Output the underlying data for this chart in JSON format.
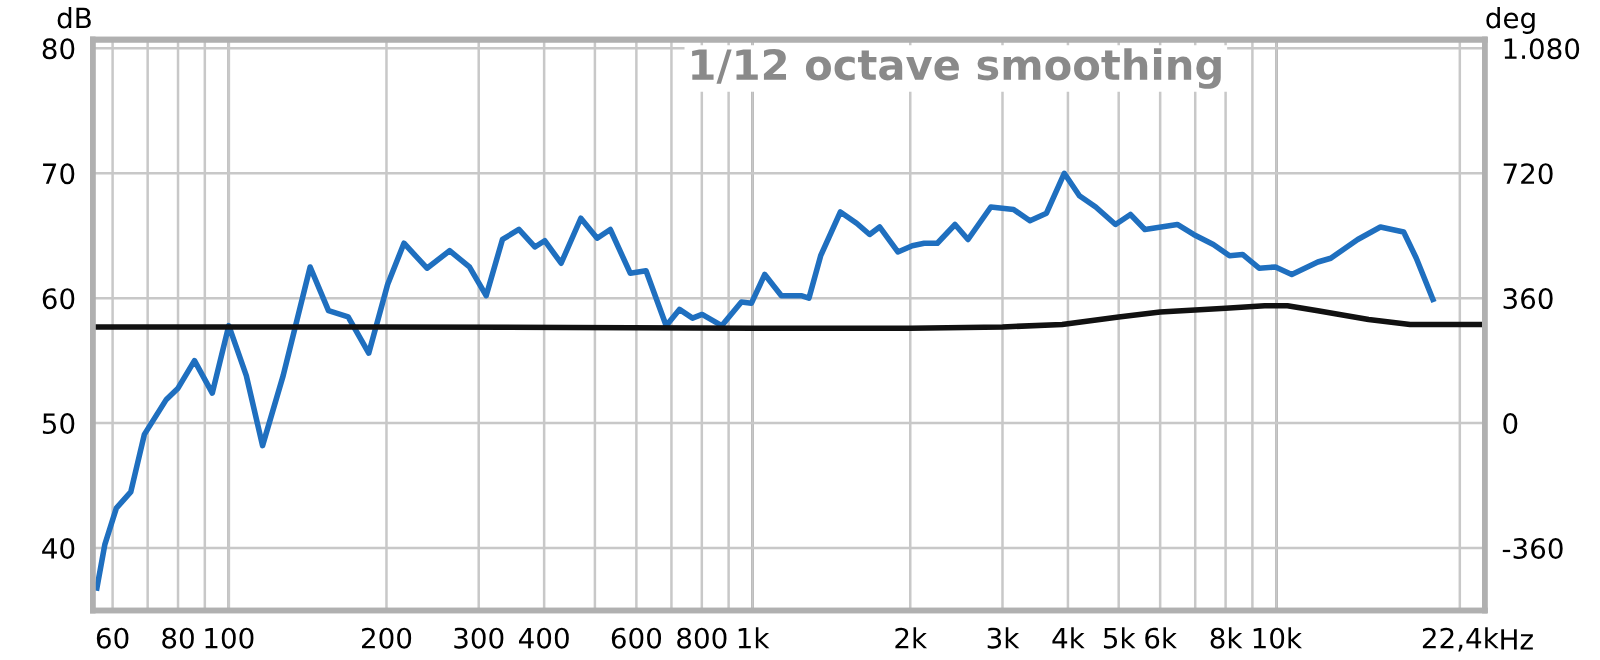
{
  "chart_data": {
    "type": "line",
    "title": "1/12 octave smoothing",
    "xlabel": "Hz",
    "ylabel": "dB",
    "y2label": "deg",
    "log": "x",
    "grid": true,
    "marker": "none",
    "line_style": "solid",
    "xlim": [
      55,
      25000
    ],
    "ylim": [
      35,
      80.7
    ],
    "y2lim": [
      -540,
      1105
    ],
    "xticks": [
      60,
      {
        "value": 70,
        "label": null
      },
      80,
      {
        "value": 90,
        "label": null
      },
      100,
      200,
      300,
      400,
      {
        "value": 500,
        "label": null
      },
      600,
      {
        "value": 700,
        "label": null
      },
      800,
      {
        "value": 900,
        "label": null
      },
      {
        "value": 1000,
        "label": "1k"
      },
      {
        "value": 2000,
        "label": "2k"
      },
      {
        "value": 3000,
        "label": "3k"
      },
      {
        "value": 4000,
        "label": "4k"
      },
      {
        "value": 5000,
        "label": "5k"
      },
      {
        "value": 6000,
        "label": "6k"
      },
      {
        "value": 7000,
        "label": null
      },
      {
        "value": 8000,
        "label": "8k"
      },
      {
        "value": 9000,
        "label": null
      },
      {
        "value": 10000,
        "label": "10k"
      },
      {
        "value": 22400,
        "label": "22,4k"
      }
    ],
    "yticks": [
      40,
      50,
      60,
      70,
      80
    ],
    "y2ticks": [
      -360,
      0,
      360,
      720,
      {
        "value": 1080,
        "label": "1.080"
      }
    ],
    "series": [
      {
        "color": "#1f6fbf",
        "x": [
          56,
          58,
          61,
          65,
          69,
          76,
          80,
          86,
          93,
          100,
          108,
          116,
          127,
          143,
          155,
          169,
          185,
          201,
          216,
          239,
          264,
          288,
          310,
          333,
          358,
          384,
          401,
          431,
          470,
          505,
          535,
          584,
          626,
          684,
          725,
          768,
          801,
          873,
          952,
          995,
          1055,
          1135,
          1238,
          1281,
          1349,
          1471,
          1580,
          1673,
          1748,
          1894,
          2018,
          2126,
          2253,
          2435,
          2578,
          2850,
          3150,
          3385,
          3640,
          3936,
          4207,
          4520,
          4930,
          5265,
          5610,
          6025,
          6470,
          6950,
          7580,
          8140,
          8620,
          9270,
          9960,
          10700,
          12000,
          12700,
          14300,
          15800,
          17500,
          18500,
          19900
        ],
        "values": [
          36.8,
          40.3,
          43.2,
          44.5,
          49.1,
          51.9,
          52.8,
          55.0,
          52.4,
          57.8,
          53.8,
          48.2,
          53.8,
          62.5,
          59.0,
          58.5,
          55.6,
          61.1,
          64.4,
          62.4,
          63.8,
          62.5,
          60.2,
          64.7,
          65.5,
          64.1,
          64.6,
          62.8,
          66.4,
          64.8,
          65.5,
          62.0,
          62.2,
          57.8,
          59.1,
          58.4,
          58.7,
          57.8,
          59.7,
          59.6,
          61.9,
          60.2,
          60.2,
          60.0,
          63.4,
          66.9,
          66.0,
          65.1,
          65.7,
          63.7,
          64.2,
          64.4,
          64.4,
          65.9,
          64.7,
          67.3,
          67.1,
          66.2,
          66.8,
          70.0,
          68.2,
          67.3,
          65.9,
          66.7,
          65.5,
          65.7,
          65.9,
          65.1,
          64.3,
          63.4,
          63.5,
          62.4,
          62.5,
          61.9,
          62.9,
          63.2,
          64.7,
          65.7,
          65.3,
          63.2,
          59.9
        ]
      },
      {
        "color": "#111111",
        "x": [
          55,
          200,
          1000,
          2000,
          3000,
          3900,
          5000,
          6000,
          8000,
          9500,
          10500,
          12000,
          15000,
          18000,
          25000
        ],
        "values": [
          57.7,
          57.7,
          57.6,
          57.6,
          57.7,
          57.9,
          58.5,
          58.9,
          59.2,
          59.4,
          59.4,
          59.0,
          58.3,
          57.9,
          57.9
        ]
      }
    ]
  }
}
